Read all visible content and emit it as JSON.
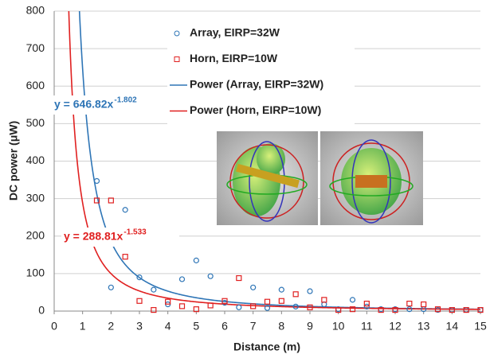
{
  "chart_data": {
    "type": "scatter",
    "x_label": "Distance (m)",
    "y_label": "DC power (μW)",
    "xlim": [
      0,
      15
    ],
    "ylim": [
      0,
      800
    ],
    "xticks": [
      0,
      1,
      2,
      3,
      4,
      5,
      6,
      7,
      8,
      9,
      10,
      11,
      12,
      13,
      14,
      15
    ],
    "yticks": [
      0,
      100,
      200,
      300,
      400,
      500,
      600,
      700,
      800
    ],
    "grid": true,
    "legend": "top",
    "x": [
      1.5,
      2,
      2.5,
      3,
      3.5,
      4,
      4.5,
      5,
      5.5,
      6,
      6.5,
      7,
      7.5,
      8,
      8.5,
      9,
      9.5,
      10,
      10.5,
      11,
      11.5,
      12,
      12.5,
      13,
      13.5,
      14,
      14.5,
      15
    ],
    "series": [
      {
        "name": "Array, EIRP=32W",
        "marker": "circle",
        "color": "#2e75b6",
        "values": [
          347,
          63,
          270,
          90,
          57,
          18,
          85,
          135,
          93,
          22,
          10,
          63,
          8,
          57,
          12,
          53,
          18,
          5,
          30,
          12,
          5,
          5,
          5,
          5,
          3,
          3,
          3,
          3
        ],
        "fit": {
          "name": "Power (Array, EIRP=32W)",
          "coefficient": 646.82,
          "exponent": -1.802,
          "label": "y = 646.82x",
          "color": "#2e75b6"
        }
      },
      {
        "name": "Horn, EIRP=10W",
        "marker": "square",
        "color": "#e02020",
        "values": [
          295,
          295,
          145,
          27,
          3,
          25,
          13,
          5,
          15,
          27,
          88,
          13,
          25,
          27,
          45,
          10,
          30,
          3,
          5,
          20,
          3,
          3,
          20,
          18,
          5,
          3,
          3,
          3
        ],
        "fit": {
          "name": "Power (Horn, EIRP=10W)",
          "coefficient": 288.81,
          "exponent": -1.533,
          "label": "y = 288.81x",
          "color": "#e02020"
        }
      }
    ]
  }
}
